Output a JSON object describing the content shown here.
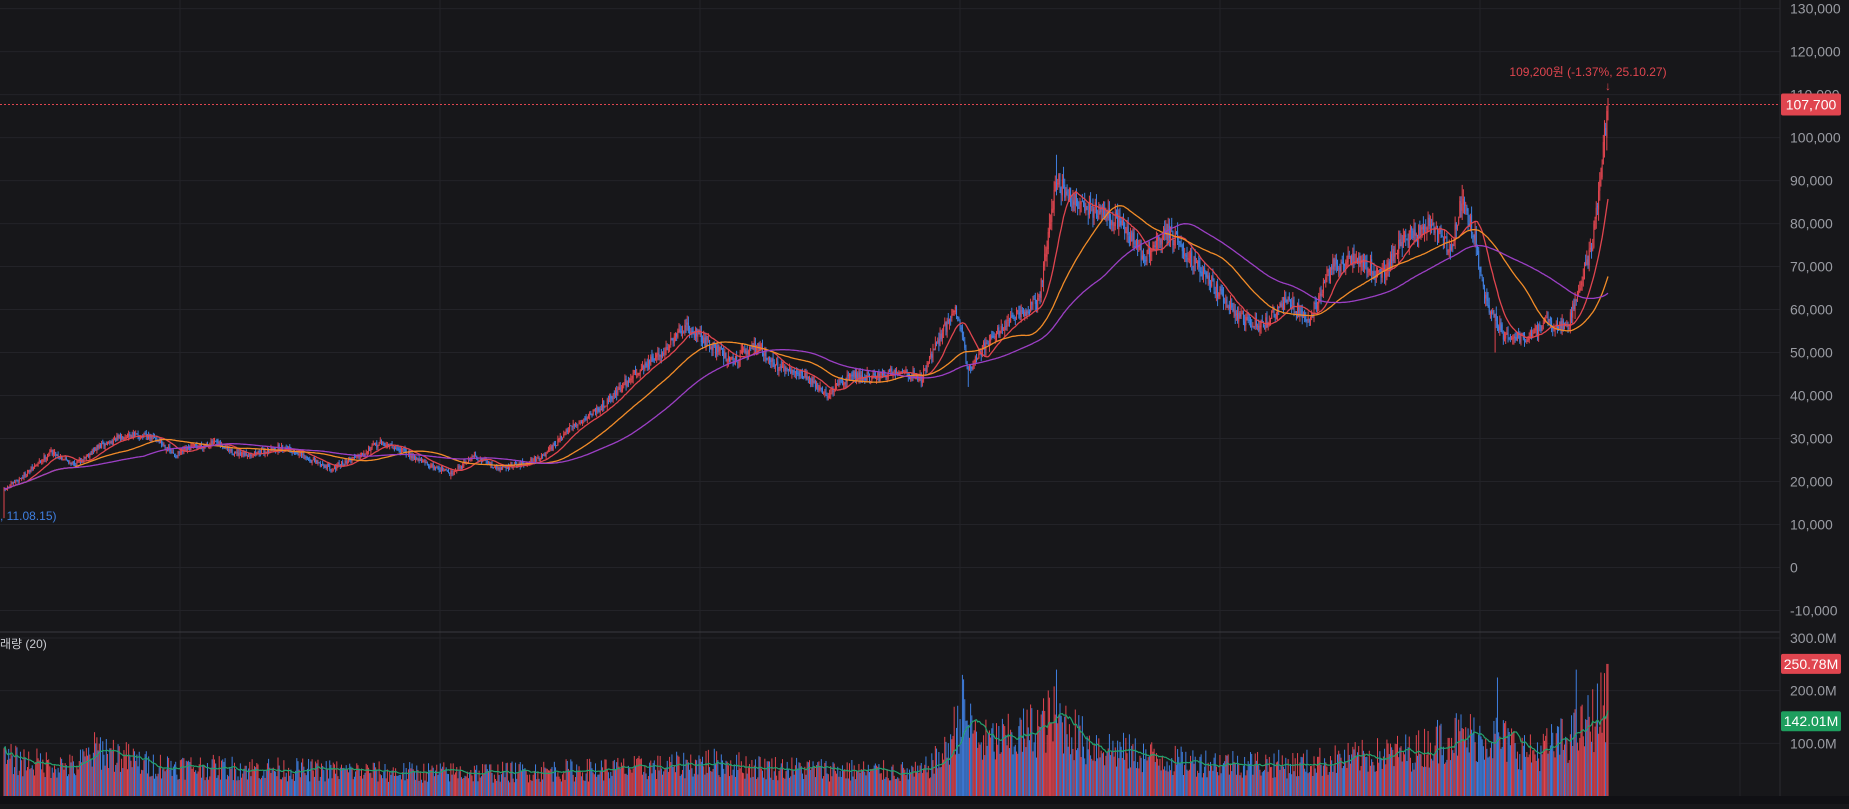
{
  "chart_data": {
    "type": "candlestick",
    "colors": {
      "background": "#17171a",
      "up": "#e0454f",
      "down": "#3f7fe0",
      "ma_short": "#e0454f",
      "ma_mid": "#f28c28",
      "ma_long": "#9b3fc4",
      "volume_ma": "#23a26d",
      "grid": "#232328"
    },
    "price_axis": {
      "ticks": [
        "130,000",
        "120,000",
        "110,000",
        "100,000",
        "90,000",
        "80,000",
        "70,000",
        "60,000",
        "50,000",
        "40,000",
        "30,000",
        "20,000",
        "10,000",
        "0",
        "-10,000"
      ],
      "ylim": [
        -15000,
        132000
      ]
    },
    "volume_axis": {
      "ticks": [
        "300.0M",
        "200.0M",
        "100.0M"
      ],
      "ylim": [
        0,
        300000000
      ]
    },
    "last_price": {
      "value": 107700,
      "label": "107,700",
      "color": "#e0454f"
    },
    "high_annotation": {
      "value": 109200,
      "text": "109,200원 (-1.37%, 25.10.27)",
      "arrow": "↓"
    },
    "low_annotation": {
      "text": ", 11.08.15)"
    },
    "volume_title": "래량 (20)",
    "volume_tags": [
      {
        "label": "250.78M",
        "value": 250780000,
        "color": "#e0454f"
      },
      {
        "label": "142.01M",
        "value": 142010000,
        "color": "#1e9e5e"
      }
    ],
    "price_anchors": [
      [
        0,
        18000
      ],
      [
        20,
        22000
      ],
      [
        40,
        27000
      ],
      [
        60,
        24000
      ],
      [
        80,
        28000
      ],
      [
        105,
        31000
      ],
      [
        130,
        30000
      ],
      [
        145,
        26000
      ],
      [
        160,
        28000
      ],
      [
        180,
        29000
      ],
      [
        200,
        26000
      ],
      [
        220,
        27000
      ],
      [
        240,
        28000
      ],
      [
        260,
        25000
      ],
      [
        280,
        23000
      ],
      [
        300,
        26000
      ],
      [
        320,
        29000
      ],
      [
        340,
        27000
      ],
      [
        360,
        24000
      ],
      [
        380,
        22000
      ],
      [
        400,
        26000
      ],
      [
        420,
        23000
      ],
      [
        440,
        24000
      ],
      [
        460,
        26000
      ],
      [
        480,
        32000
      ],
      [
        510,
        38000
      ],
      [
        540,
        46000
      ],
      [
        560,
        50000
      ],
      [
        580,
        56000
      ],
      [
        600,
        52000
      ],
      [
        620,
        48000
      ],
      [
        640,
        52000
      ],
      [
        660,
        46000
      ],
      [
        680,
        45000
      ],
      [
        700,
        40000
      ],
      [
        720,
        45000
      ],
      [
        740,
        44000
      ],
      [
        760,
        46000
      ],
      [
        780,
        44000
      ],
      [
        800,
        56000
      ],
      [
        810,
        60000
      ],
      [
        820,
        46000
      ],
      [
        840,
        54000
      ],
      [
        860,
        58000
      ],
      [
        880,
        62000
      ],
      [
        895,
        90000
      ],
      [
        910,
        85000
      ],
      [
        930,
        83000
      ],
      [
        950,
        80000
      ],
      [
        970,
        72000
      ],
      [
        990,
        78000
      ],
      [
        1010,
        72000
      ],
      [
        1030,
        65000
      ],
      [
        1050,
        58000
      ],
      [
        1070,
        56000
      ],
      [
        1090,
        62000
      ],
      [
        1110,
        58000
      ],
      [
        1130,
        70000
      ],
      [
        1150,
        72000
      ],
      [
        1170,
        68000
      ],
      [
        1190,
        76000
      ],
      [
        1210,
        80000
      ],
      [
        1230,
        74000
      ],
      [
        1240,
        86000
      ],
      [
        1250,
        78000
      ],
      [
        1260,
        62000
      ],
      [
        1275,
        54000
      ],
      [
        1295,
        53000
      ],
      [
        1310,
        57000
      ],
      [
        1330,
        56000
      ],
      [
        1340,
        66000
      ],
      [
        1350,
        74000
      ],
      [
        1355,
        85000
      ],
      [
        1360,
        98000
      ],
      [
        1364,
        107700
      ]
    ],
    "high_extremes": [
      [
        895,
        96000
      ],
      [
        1240,
        89000
      ],
      [
        1364,
        109200
      ]
    ],
    "low_extremes": [
      [
        0,
        11500
      ],
      [
        380,
        20500
      ],
      [
        820,
        42000
      ],
      [
        1268,
        50000
      ]
    ],
    "volume_anchors": [
      [
        0,
        70000000
      ],
      [
        60,
        55000000
      ],
      [
        80,
        90000000
      ],
      [
        120,
        60000000
      ],
      [
        160,
        55000000
      ],
      [
        250,
        50000000
      ],
      [
        330,
        45000000
      ],
      [
        420,
        45000000
      ],
      [
        500,
        50000000
      ],
      [
        560,
        55000000
      ],
      [
        600,
        65000000
      ],
      [
        640,
        55000000
      ],
      [
        700,
        50000000
      ],
      [
        780,
        45000000
      ],
      [
        800,
        80000000
      ],
      [
        815,
        160000000
      ],
      [
        830,
        100000000
      ],
      [
        860,
        110000000
      ],
      [
        895,
        150000000
      ],
      [
        920,
        100000000
      ],
      [
        960,
        80000000
      ],
      [
        1000,
        65000000
      ],
      [
        1100,
        60000000
      ],
      [
        1200,
        85000000
      ],
      [
        1230,
        115000000
      ],
      [
        1270,
        110000000
      ],
      [
        1300,
        80000000
      ],
      [
        1340,
        120000000
      ],
      [
        1364,
        180000000
      ]
    ],
    "volume_spikes": [
      [
        606,
        85000000
      ],
      [
        815,
        230000000
      ],
      [
        895,
        240000000
      ],
      [
        1270,
        225000000
      ],
      [
        1337,
        240000000
      ],
      [
        1364,
        250780000
      ]
    ]
  }
}
